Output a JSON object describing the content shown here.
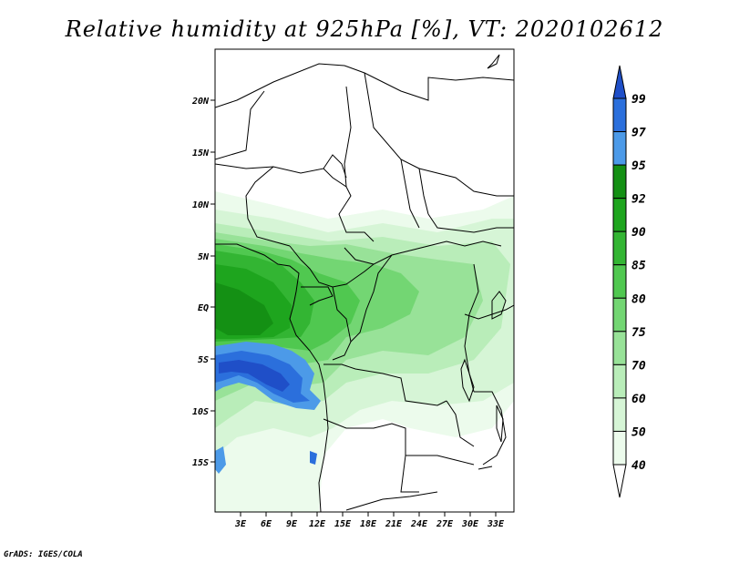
{
  "title": "Relative humidity at 925hPa [%], VT: 2020102612",
  "credit": "GrADS: IGES/COLA",
  "map": {
    "lat_labels": [
      "20N",
      "15N",
      "10N",
      "5N",
      "EQ",
      "5S",
      "10S",
      "15S"
    ],
    "lon_labels": [
      "3E",
      "6E",
      "9E",
      "12E",
      "15E",
      "18E",
      "21E",
      "24E",
      "27E",
      "30E",
      "33E"
    ]
  },
  "colorbar": {
    "levels": [
      "99",
      "97",
      "95",
      "92",
      "90",
      "85",
      "80",
      "75",
      "70",
      "60",
      "50",
      "40"
    ],
    "colors": [
      "#1f4fc8",
      "#2b6fdc",
      "#4c9ae8",
      "#149014",
      "#1ea51e",
      "#33b533",
      "#50c850",
      "#73d673",
      "#98e298",
      "#b9edb9",
      "#d6f5d6",
      "#ecfbec",
      "#ffffff"
    ]
  }
}
